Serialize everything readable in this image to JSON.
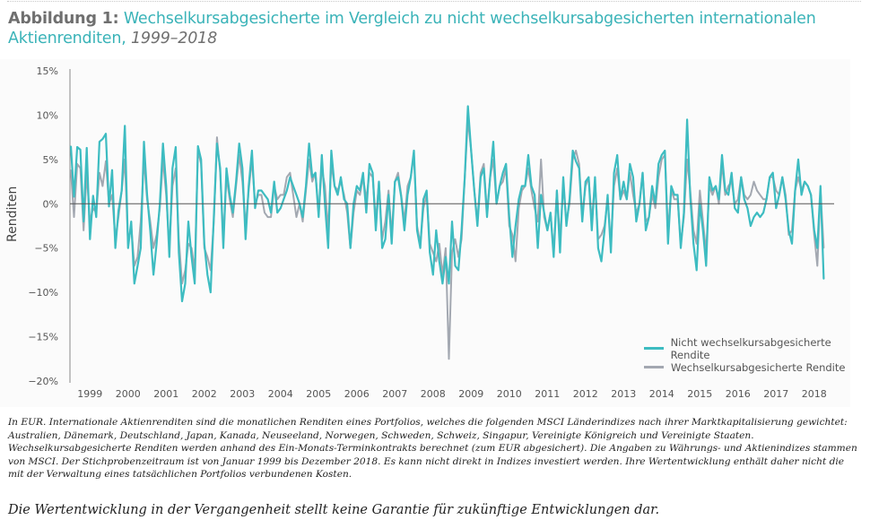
{
  "header": {
    "figure_label": "Abbildung 1:",
    "title": "Wechselkursabgesicherte im Vergleich zu nicht wechselkursabgesicherten internationalen Aktienrenditen,",
    "period": "1999–2018"
  },
  "footnote": "In EUR. Internationale Aktienrenditen sind die monatlichen Renditen eines Portfolios, welches die folgenden MSCI Länderindizes nach ihrer Marktkapitalisierung gewichtet: Australien, Dänemark, Deutschland, Japan, Kanada, Neuseeland, Norwegen, Schweden, Schweiz, Singapur, Vereinigte Königreich und Vereinigte Staaten. Wechselkursabgesicherte Renditen werden anhand des Ein-Monats-Terminkontrakts berechnet (zum EUR abgesichert). Die Angaben zu Währungs- und Aktienindizes stammen von MSCI. Der Stichprobenzeitraum ist von Januar 1999 bis Dezember 2018. Es kann nicht direkt in Indizes investiert werden. Ihre Wertentwicklung enthält daher nicht die mit der Verwaltung eines tatsächlichen Portfolios verbundenen Kosten.",
  "disclaimer": "Die Wertentwicklung in der Vergangenheit stellt keine Garantie für zukünftige Entwicklungen dar.",
  "colors": {
    "unhedged": "#3dbcc1",
    "hedged": "#a3a8b1",
    "title_accent": "#3ab3b8",
    "zero_line": "#555555"
  },
  "chart_data": {
    "type": "line",
    "title": "Wechselkursabgesicherte im Vergleich zu nicht wechselkursabgesicherten internationalen Aktienrenditen, 1999–2018",
    "xlabel": "",
    "ylabel": "Renditen",
    "x_start": "1999-01",
    "x_end": "2018-12",
    "frequency": "monthly",
    "xlim": [
      1999,
      2019
    ],
    "ylim": [
      -20,
      15
    ],
    "yticks": [
      15,
      10,
      5,
      0,
      -5,
      -10,
      -15,
      -20
    ],
    "ytick_labels": [
      "15%",
      "10%",
      "5%",
      "0%",
      "−5%",
      "−10%",
      "−15%",
      "−20%"
    ],
    "xtick_labels": [
      "1999",
      "2000",
      "2001",
      "2002",
      "2003",
      "2004",
      "2005",
      "2006",
      "2007",
      "2008",
      "2009",
      "2010",
      "2011",
      "2012",
      "2013",
      "2014",
      "2015",
      "2016",
      "2017",
      "2018"
    ],
    "legend_position": "bottom-right",
    "grid": false,
    "series": [
      {
        "name": "Nicht wechselkursabgesicherte Rendite",
        "color": "#3dbcc1",
        "values": [
          6.5,
          0.8,
          6.4,
          6.1,
          -2.0,
          6.3,
          -4.0,
          0.9,
          -1.5,
          7.0,
          7.3,
          7.9,
          -0.3,
          3.8,
          -5.0,
          -0.8,
          1.5,
          8.8,
          -5.0,
          -2.0,
          -9.0,
          -7.0,
          -5.0,
          7.0,
          1.0,
          -3.0,
          -8.0,
          -4.5,
          0.0,
          6.8,
          2.0,
          -6.0,
          4.0,
          6.4,
          -5.5,
          -11.0,
          -9.0,
          -2.0,
          -6.0,
          -9.0,
          6.5,
          5.0,
          -4.5,
          -8.0,
          -10.0,
          -1.5,
          6.8,
          4.0,
          -5.0,
          4.0,
          1.0,
          -1.0,
          2.5,
          6.8,
          4.0,
          -4.0,
          2.0,
          6.0,
          -0.5,
          1.5,
          1.5,
          1.0,
          0.5,
          -1.0,
          2.5,
          -1.0,
          -0.5,
          0.5,
          1.5,
          3.0,
          2.0,
          1.0,
          0.0,
          -1.5,
          2.0,
          6.8,
          3.0,
          3.5,
          -1.5,
          5.5,
          0.0,
          -5.0,
          6.0,
          2.0,
          1.0,
          3.0,
          0.5,
          0.0,
          -5.0,
          0.0,
          2.0,
          1.5,
          3.5,
          -1.0,
          4.5,
          3.5,
          -3.0,
          2.5,
          -5.0,
          -4.0,
          1.0,
          -4.5,
          2.5,
          3.0,
          0.8,
          -3.0,
          1.0,
          3.0,
          6.0,
          -3.0,
          -5.0,
          0.5,
          1.5,
          -5.5,
          -8.0,
          -3.0,
          -6.5,
          -9.0,
          -6.0,
          -9.0,
          -2.0,
          -7.0,
          -7.5,
          -3.0,
          3.0,
          11.0,
          6.0,
          1.5,
          -2.5,
          3.0,
          4.0,
          -1.5,
          3.0,
          7.0,
          0.0,
          2.0,
          3.5,
          4.5,
          -1.5,
          -6.0,
          -2.5,
          0.5,
          2.0,
          2.0,
          5.5,
          2.0,
          1.0,
          -5.0,
          1.0,
          -1.0,
          -3.0,
          -1.0,
          -6.0,
          1.5,
          -5.5,
          3.0,
          -2.5,
          0.5,
          6.0,
          4.8,
          4.0,
          -2.0,
          2.5,
          3.0,
          -3.0,
          3.0,
          -5.0,
          -6.5,
          -3.0,
          1.0,
          -5.5,
          3.5,
          5.5,
          0.5,
          2.5,
          0.5,
          4.5,
          3.0,
          -2.0,
          0.0,
          3.5,
          -3.0,
          -1.5,
          2.0,
          0.0,
          4.5,
          5.5,
          6.0,
          -4.5,
          2.0,
          1.0,
          1.0,
          -5.0,
          -1.0,
          9.5,
          0.8,
          -4.5,
          -7.5,
          0.0,
          -3.0,
          -7.0,
          3.0,
          1.5,
          2.0,
          0.5,
          5.5,
          1.5,
          1.0,
          3.5,
          -0.5,
          -1.0,
          3.0,
          0.5,
          -0.5,
          -2.5,
          -1.5,
          -1.0,
          -1.5,
          -1.0,
          0.5,
          3.0,
          3.5,
          -0.5,
          1.0,
          3.0,
          0.5,
          -3.0,
          -4.5,
          1.5,
          5.0,
          1.0,
          2.5,
          2.0,
          1.0,
          -3.0,
          -5.0,
          2.0,
          -8.5
        ],
        "label_position": "legend"
      },
      {
        "name": "Wechselkursabgesicherte Rendite",
        "color": "#a3a8b1",
        "values": [
          3.8,
          -1.5,
          4.5,
          4.0,
          -3.0,
          3.5,
          -2.0,
          -0.5,
          -1.0,
          3.5,
          2.0,
          4.8,
          0.0,
          1.0,
          -4.0,
          -1.5,
          1.5,
          5.0,
          -4.5,
          -2.5,
          -7.0,
          -6.0,
          -2.0,
          5.0,
          0.5,
          -2.0,
          -5.0,
          -3.5,
          -0.5,
          5.0,
          1.0,
          -5.0,
          2.0,
          4.0,
          -4.0,
          -9.0,
          -7.5,
          -4.5,
          -5.0,
          -7.5,
          6.0,
          4.5,
          -5.0,
          -6.0,
          -7.5,
          -2.0,
          7.5,
          3.5,
          -4.0,
          3.0,
          0.5,
          -1.5,
          2.0,
          5.5,
          2.5,
          -2.5,
          1.5,
          5.0,
          0.0,
          1.0,
          1.0,
          -1.0,
          -1.5,
          -1.5,
          2.0,
          0.5,
          1.0,
          1.0,
          3.0,
          3.5,
          1.0,
          -1.5,
          0.0,
          -2.0,
          1.5,
          5.0,
          2.5,
          3.5,
          -1.0,
          4.0,
          2.0,
          -3.0,
          4.5,
          2.0,
          1.5,
          2.5,
          1.0,
          -1.0,
          -5.0,
          -1.0,
          1.5,
          1.0,
          3.0,
          0.5,
          3.5,
          3.0,
          -2.0,
          2.5,
          -4.0,
          -2.0,
          1.5,
          -3.5,
          2.5,
          3.5,
          1.0,
          -2.0,
          2.0,
          3.0,
          5.5,
          -2.5,
          -4.5,
          -0.5,
          1.0,
          -4.5,
          -5.5,
          -6.5,
          -4.5,
          -8.0,
          -5.0,
          -17.5,
          -5.5,
          -4.0,
          -6.0,
          -4.0,
          3.0,
          9.5,
          6.0,
          1.5,
          -2.0,
          3.5,
          4.5,
          -1.0,
          3.0,
          5.0,
          0.0,
          2.0,
          2.5,
          4.0,
          -2.5,
          -3.5,
          -6.5,
          -0.5,
          1.5,
          2.0,
          4.0,
          1.5,
          -0.5,
          -2.0,
          5.0,
          -1.5,
          -3.0,
          -1.0,
          -5.5,
          1.5,
          -4.0,
          2.0,
          -2.0,
          0.0,
          5.0,
          6.0,
          4.5,
          -1.5,
          2.0,
          3.0,
          -2.0,
          2.5,
          -4.0,
          -3.5,
          -2.5,
          0.5,
          -4.5,
          2.0,
          4.0,
          0.5,
          1.5,
          0.5,
          3.5,
          1.0,
          -1.0,
          0.0,
          3.5,
          -2.0,
          -1.5,
          1.0,
          -0.5,
          3.0,
          5.0,
          5.5,
          -3.0,
          1.5,
          0.5,
          0.5,
          -4.5,
          -1.5,
          5.0,
          1.5,
          -3.0,
          -4.5,
          1.5,
          -2.0,
          -5.5,
          2.0,
          1.0,
          2.0,
          0.0,
          4.5,
          1.0,
          2.0,
          2.5,
          0.0,
          0.5,
          3.0,
          1.0,
          0.5,
          1.0,
          2.5,
          1.5,
          1.0,
          0.5,
          0.5,
          3.0,
          3.0,
          1.5,
          1.0,
          3.0,
          1.0,
          -3.5,
          -3.0,
          1.5,
          3.0,
          1.5,
          2.5,
          2.0,
          1.0,
          -3.5,
          -7.0,
          1.5,
          -5.0
        ],
        "label_position": "legend"
      }
    ]
  }
}
